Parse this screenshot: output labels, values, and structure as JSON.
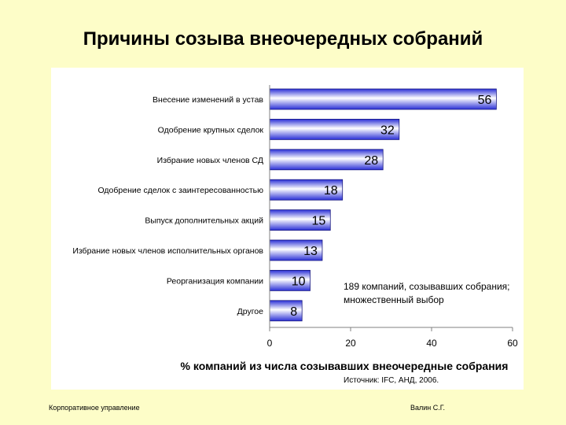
{
  "slide": {
    "title": "Причины созыва внеочередных собраний",
    "footer_left": "Корпоративное управление",
    "footer_right": "Валин С.Г."
  },
  "chart_data": {
    "type": "bar",
    "orientation": "horizontal",
    "categories": [
      "Внесение изменений в устав",
      "Одобрение крупных сделок",
      "Избрание новых членов СД",
      "Одобрение сделок с заинтересованностью",
      "Выпуск дополнительных акций",
      "Избрание новых членов исполнительных органов",
      "Реорганизация компании",
      "Другое"
    ],
    "values": [
      56,
      32,
      28,
      18,
      15,
      13,
      10,
      8
    ],
    "xlabel": "% компаний из числа созывавших внеочередные собрания",
    "xlim": [
      0,
      60
    ],
    "xticks": [
      0,
      20,
      40,
      60
    ],
    "note_lines": [
      "189 компаний, созывавших собрания;",
      "множественный выбор"
    ],
    "source": "Источник:  IFC, АНД,  2006.",
    "colors": {
      "bar_dark": "#2a2fd6",
      "bar_light": "#ffffff",
      "bar_edge": "#1a1a80"
    }
  }
}
